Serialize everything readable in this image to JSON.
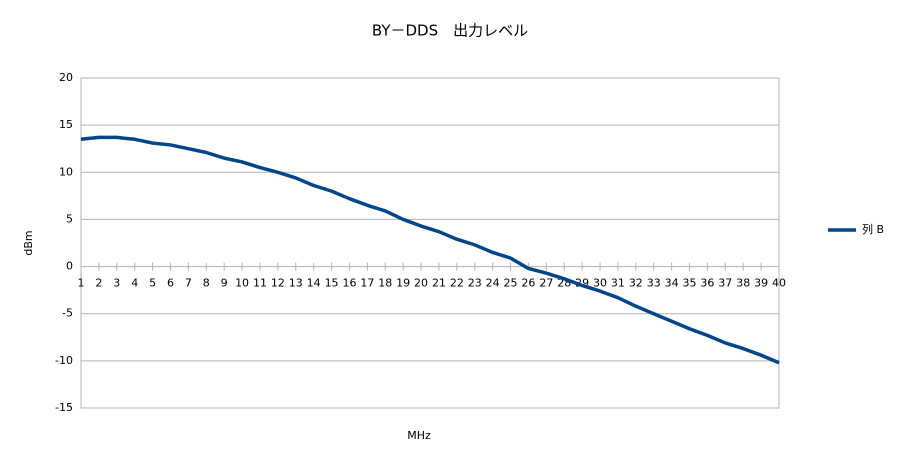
{
  "chart_data": {
    "type": "line",
    "title": "BY－DDS　出力レベル",
    "x_label": "MHz",
    "y_label": "dBm",
    "categories": [
      "1",
      "2",
      "3",
      "4",
      "5",
      "6",
      "7",
      "8",
      "9",
      "10",
      "11",
      "12",
      "13",
      "14",
      "15",
      "16",
      "17",
      "18",
      "19",
      "20",
      "21",
      "22",
      "23",
      "24",
      "25",
      "26",
      "27",
      "28",
      "29",
      "30",
      "31",
      "32",
      "33",
      "34",
      "35",
      "36",
      "37",
      "38",
      "39",
      "40"
    ],
    "series": [
      {
        "name": "列 B",
        "color": "#004586",
        "values": [
          13.5,
          13.7,
          13.7,
          13.5,
          13.1,
          12.9,
          12.5,
          12.1,
          11.5,
          11.1,
          10.5,
          10.0,
          9.4,
          8.6,
          8.0,
          7.2,
          6.5,
          5.9,
          5.0,
          4.3,
          3.7,
          2.9,
          2.3,
          1.5,
          0.9,
          -0.2,
          -0.7,
          -1.3,
          -2.0,
          -2.6,
          -3.3,
          -4.2,
          -5.0,
          -5.8,
          -6.6,
          -7.3,
          -8.1,
          -8.7,
          -9.4,
          -10.2
        ]
      }
    ],
    "ylim": [
      -15,
      20
    ],
    "yticks": [
      -15,
      -10,
      -5,
      0,
      5,
      10,
      15,
      20
    ],
    "grid": true,
    "legend": "right"
  }
}
